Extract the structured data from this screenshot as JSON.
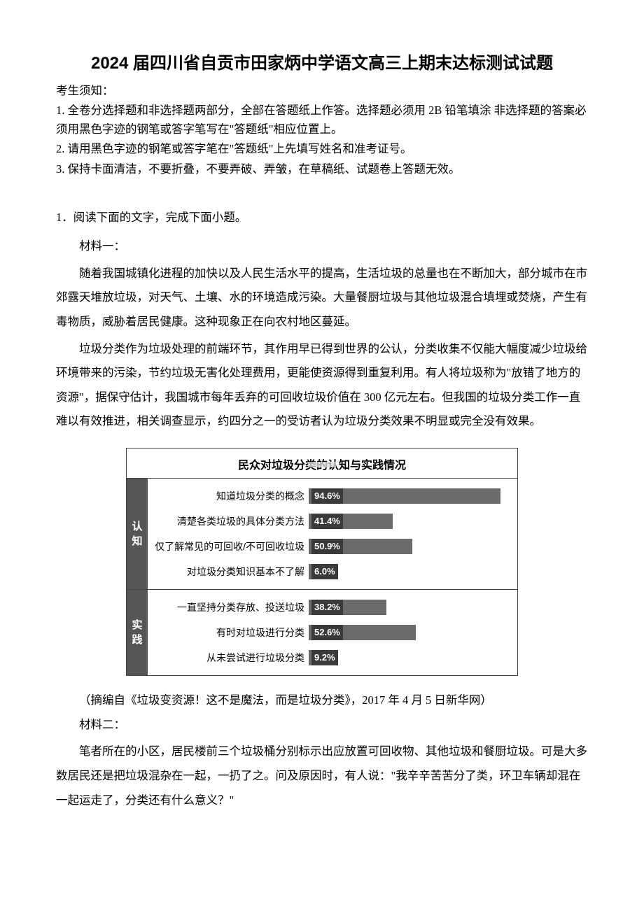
{
  "title": "2024 届四川省自贡市田家炳中学语文高三上期末达标测试试题",
  "notice_header": "考生须知：",
  "notices": [
    "1. 全卷分选择题和非选择题两部分，全部在答题纸上作答。选择题必须用 2B 铅笔填涂 非选择题的答案必须用黑色字迹的钢笔或答字笔写在\"答题纸\"相应位置上。",
    "2. 请用黑色字迹的钢笔或答字笔在\"答题纸\"上先填写姓名和准考证号。",
    "3. 保持卡面清洁，不要折叠，不要弄破、弄皱，在草稿纸、试题卷上答题无效。"
  ],
  "q1_header": "1．阅读下面的文字，完成下面小题。",
  "m1_label": "材料一：",
  "m1_p1": "随着我国城镇化进程的加快以及人民生活水平的提高，生活垃圾的总量也在不断加大，部分城市在市郊露天堆放垃圾，对天气、土壤、水的环境造成污染。大量餐厨垃圾与其他垃圾混合填埋或焚烧，产生有毒物质，威胁着居民健康。这种现象正在向农村地区蔓延。",
  "m1_p2": "垃圾分类作为垃圾处理的前端环节，其作用早已得到世界的公认，分类收集不仅能大幅度减少垃圾给环境带来的污染，节约垃圾无害化处理费用，更能使资源得到重复利用。有人将垃圾称为\"放错了地方的资源\"，据保守估计，我国城市每年丢弃的可回收垃圾价值在 300 亿元左右。但我国的垃圾分类工作一直难以有效推进，相关调查显示，约四分之一的受访者认为垃圾分类效果不明显或完全没有效果。",
  "chart": {
    "title": "民众对垃圾分类的认知与实践情况",
    "bar_color": "#6b6b6b",
    "value_bg_color": "#3a3a3a",
    "section_label_bg": "#555555",
    "max_pct": 100,
    "sections": [
      {
        "label_chars": [
          "认",
          "知"
        ],
        "rows": [
          {
            "label": "知道垃圾分类的概念",
            "value_text": "94.6%",
            "pct": 94.6
          },
          {
            "label": "清楚各类垃圾的具体分类方法",
            "value_text": "41.4%",
            "pct": 41.4
          },
          {
            "label": "仅了解常见的可回收/不可回收垃圾",
            "value_text": "50.9%",
            "pct": 50.9
          },
          {
            "label": "对垃圾分类知识基本不了解",
            "value_text": "6.0%",
            "pct": 6.0
          }
        ]
      },
      {
        "label_chars": [
          "实",
          "践"
        ],
        "rows": [
          {
            "label": "一直坚持分类存放、投送垃圾",
            "value_text": "38.2%",
            "pct": 38.2
          },
          {
            "label": "有时对垃圾进行分类",
            "value_text": "52.6%",
            "pct": 52.6
          },
          {
            "label": "从未尝试进行垃圾分类",
            "value_text": "9.2%",
            "pct": 9.2
          }
        ]
      }
    ]
  },
  "m1_source": "（摘编自《垃圾变资源！这不是魔法，而是垃圾分类》，2017 年 4 月 5 日新华网）",
  "m2_label": "材料二：",
  "m2_p1": "笔者所在的小区，居民楼前三个垃圾桶分别标示出应放置可回收物、其他垃圾和餐厨垃圾。可是大多数居民还是把垃圾混杂在一起，一扔了之。问及原因时，有人说：\"我辛辛苦苦分了类，环卫车辆却混在一起运走了，分类还有什么意义？\""
}
